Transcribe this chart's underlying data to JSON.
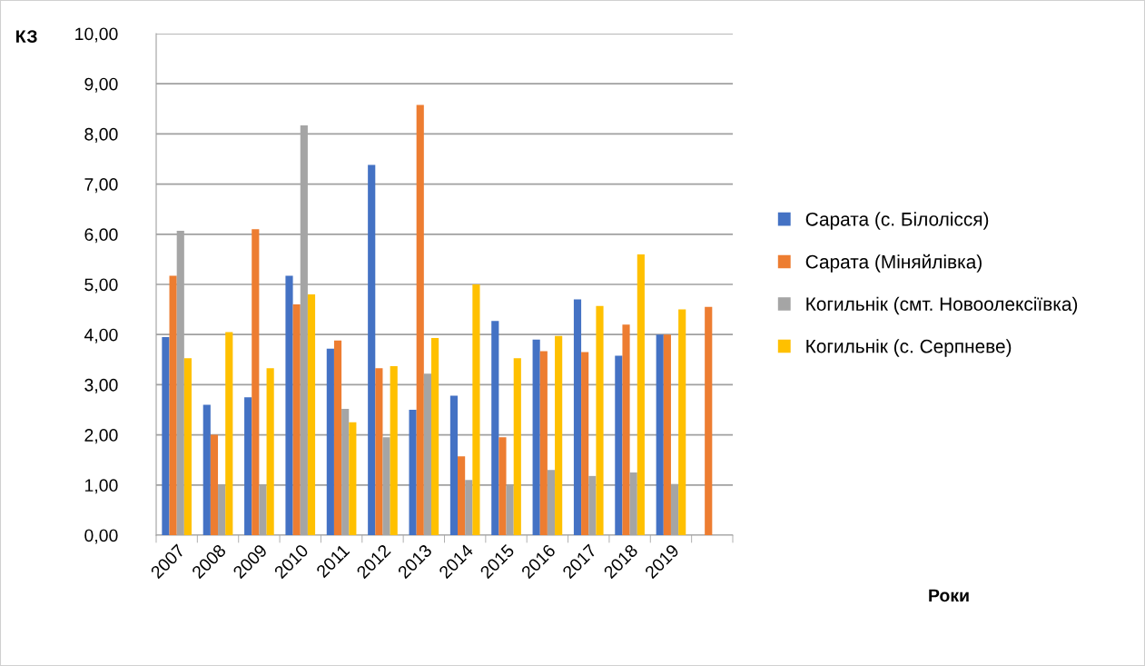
{
  "chart_data": {
    "type": "bar",
    "annotations": [
      "Роки"
    ],
    "ylabel": "КЗ",
    "categories": [
      "2007",
      "2008",
      "2009",
      "2010",
      "2011",
      "2012",
      "2013",
      "2014",
      "2015",
      "2016",
      "2017",
      "2018",
      "2019",
      null
    ],
    "series": [
      {
        "name": "Сарата (с. Білолісся)",
        "color": "#4472c4",
        "values": [
          3.95,
          2.6,
          2.75,
          5.17,
          3.72,
          7.38,
          2.5,
          2.78,
          4.27,
          3.9,
          4.7,
          3.58,
          4.0,
          null
        ]
      },
      {
        "name": "Сарата (Міняйлівка)",
        "color": "#ed7d31",
        "values": [
          5.17,
          2.0,
          6.1,
          4.6,
          3.88,
          3.33,
          8.58,
          1.57,
          1.95,
          3.67,
          3.65,
          4.2,
          4.0,
          4.55
        ]
      },
      {
        "name": "Когильнік (смт. Новоолексіївка)",
        "color": "#a5a5a5",
        "values": [
          6.07,
          1.0,
          1.0,
          8.17,
          2.52,
          1.95,
          3.22,
          1.1,
          1.0,
          1.3,
          1.18,
          1.25,
          1.02,
          null
        ]
      },
      {
        "name": "Когильнік (с. Серпневе)",
        "color": "#ffc000",
        "values": [
          3.53,
          4.05,
          3.33,
          4.8,
          2.25,
          3.37,
          3.93,
          5.0,
          3.53,
          3.97,
          4.57,
          5.6,
          4.5,
          null
        ]
      }
    ],
    "ylim": [
      0,
      10
    ],
    "yticks": [
      {
        "value": 0,
        "label": "0,00"
      },
      {
        "value": 1,
        "label": "1,00"
      },
      {
        "value": 2,
        "label": "2,00"
      },
      {
        "value": 3,
        "label": "3,00"
      },
      {
        "value": 4,
        "label": "4,00"
      },
      {
        "value": 5,
        "label": "5,00"
      },
      {
        "value": 6,
        "label": "6,00"
      },
      {
        "value": 7,
        "label": "7,00"
      },
      {
        "value": 8,
        "label": "8,00"
      },
      {
        "value": 9,
        "label": "9,00"
      },
      {
        "value": 10,
        "label": "10,00"
      }
    ],
    "grid": "y",
    "legend": "right"
  }
}
